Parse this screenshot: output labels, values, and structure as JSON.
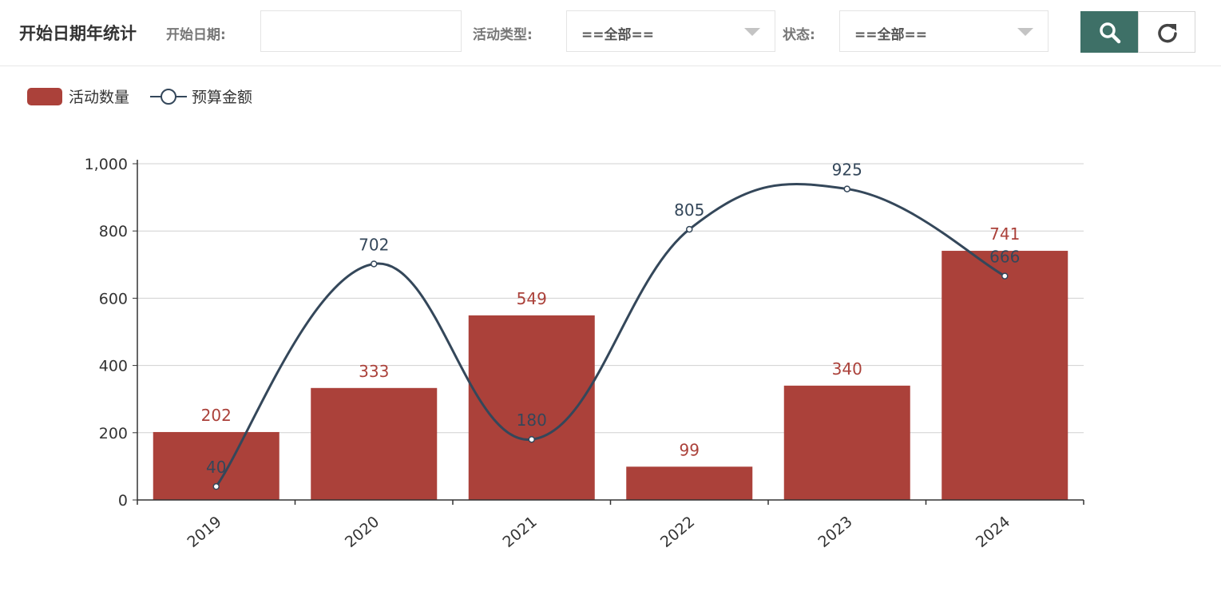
{
  "header": {
    "title": "开始日期年统计",
    "date_label": "开始日期:",
    "date_value": "",
    "type_label": "活动类型:",
    "type_value": "==全部==",
    "status_label": "状态:",
    "status_value": "==全部=="
  },
  "colors": {
    "bar": "#ab413a",
    "line": "#34475a",
    "accent": "#3e7067"
  },
  "icons": {
    "search": "search-icon",
    "refresh": "refresh-icon"
  },
  "chart_data": {
    "type": "bar",
    "categories": [
      "2019",
      "2020",
      "2021",
      "2022",
      "2023",
      "2024"
    ],
    "series": [
      {
        "name": "活动数量",
        "type": "bar",
        "values": [
          202,
          333,
          549,
          99,
          340,
          741
        ]
      },
      {
        "name": "预算金额",
        "type": "line",
        "smooth": true,
        "values": [
          40,
          702,
          180,
          805,
          925,
          666
        ]
      }
    ],
    "ylim": [
      0,
      1000
    ],
    "yticks": [
      0,
      200,
      400,
      600,
      800,
      1000
    ],
    "ytick_labels": [
      "0",
      "200",
      "400",
      "600",
      "800",
      "1,000"
    ],
    "grid": true,
    "legend_position": "top-left",
    "data_labels": true
  }
}
